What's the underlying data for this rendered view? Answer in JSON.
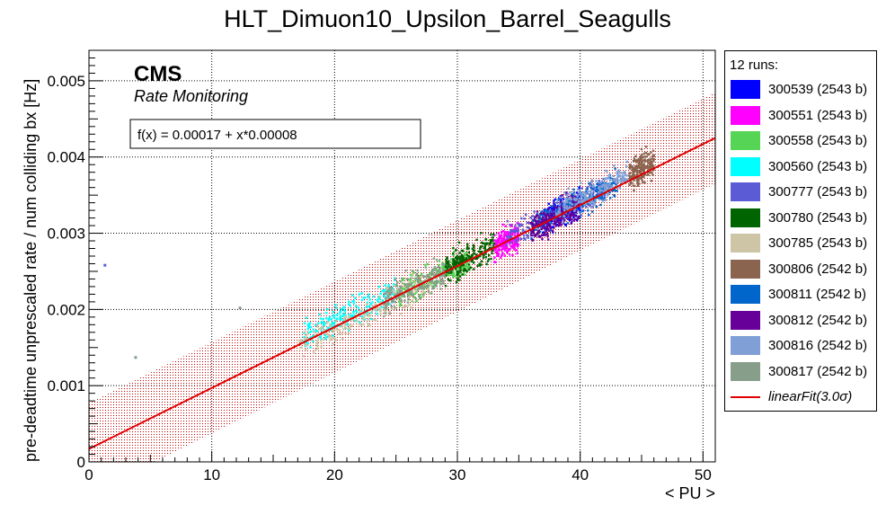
{
  "chart_data": {
    "type": "scatter",
    "title": "HLT_Dimuon10_Upsilon_Barrel_Seagulls",
    "xlabel": "< PU >",
    "ylabel": "pre-deadtime unprescaled rate / num colliding bx [Hz]",
    "xlim": [
      0,
      51
    ],
    "ylim": [
      0,
      0.0054
    ],
    "x_ticks": [
      "0",
      "10",
      "20",
      "30",
      "40",
      "50"
    ],
    "y_ticks": [
      "0",
      "0.001",
      "0.002",
      "0.003",
      "0.004",
      "0.005"
    ],
    "grid": true,
    "cms_label": "CMS",
    "cms_sublabel": "Rate Monitoring",
    "fit_text": "f(x) = 0.00017 + x*0.00008",
    "fit": {
      "intercept": 0.00017,
      "slope": 8e-05,
      "band_halfwidth": 0.0006,
      "color": "#e00000",
      "legend_label": "linearFit(3.0σ)"
    },
    "legend_header": "12 runs:",
    "legend_position": "right",
    "series": [
      {
        "name": "300539 (2543 b)",
        "color": "#0000ff",
        "x_range": [
          37,
          40
        ],
        "y_center": 0.0033
      },
      {
        "name": "300551 (2543 b)",
        "color": "#ff00ff",
        "x_range": [
          33,
          35
        ],
        "y_center": 0.0029
      },
      {
        "name": "300558 (2543 b)",
        "color": "#55d455",
        "x_range": [
          25,
          31
        ],
        "y_center": 0.0024
      },
      {
        "name": "300560 (2543 b)",
        "color": "#00ffff",
        "x_range": [
          17.5,
          25
        ],
        "y_center": 0.002
      },
      {
        "name": "300777 (2543 b)",
        "color": "#5b5bd6",
        "x_range": [
          34,
          42
        ],
        "y_center": 0.0033
      },
      {
        "name": "300780 (2543 b)",
        "color": "#006400",
        "x_range": [
          29,
          33
        ],
        "y_center": 0.0027
      },
      {
        "name": "300785 (2543 b)",
        "color": "#cdc5a5",
        "x_range": [
          17,
          28
        ],
        "y_center": 0.0019
      },
      {
        "name": "300806 (2542 b)",
        "color": "#8b6450",
        "x_range": [
          44,
          46
        ],
        "y_center": 0.0039
      },
      {
        "name": "300811 (2542 b)",
        "color": "#0066cc",
        "x_range": [
          36,
          43
        ],
        "y_center": 0.0034
      },
      {
        "name": "300812 (2542 b)",
        "color": "#660099",
        "x_range": [
          36,
          40
        ],
        "y_center": 0.0032
      },
      {
        "name": "300816 (2542 b)",
        "color": "#7f9fd6",
        "x_range": [
          38,
          44
        ],
        "y_center": 0.0036
      },
      {
        "name": "300817 (2542 b)",
        "color": "#869e8a",
        "x_range": [
          24,
          29
        ],
        "y_center": 0.0023
      }
    ],
    "outliers": [
      {
        "x": 1.3,
        "y": 0.00258,
        "color": "#5b5bd6"
      },
      {
        "x": 3.8,
        "y": 0.00137,
        "color": "#869e8a"
      },
      {
        "x": 12.3,
        "y": 0.00202,
        "color": "#869e8a"
      }
    ]
  }
}
